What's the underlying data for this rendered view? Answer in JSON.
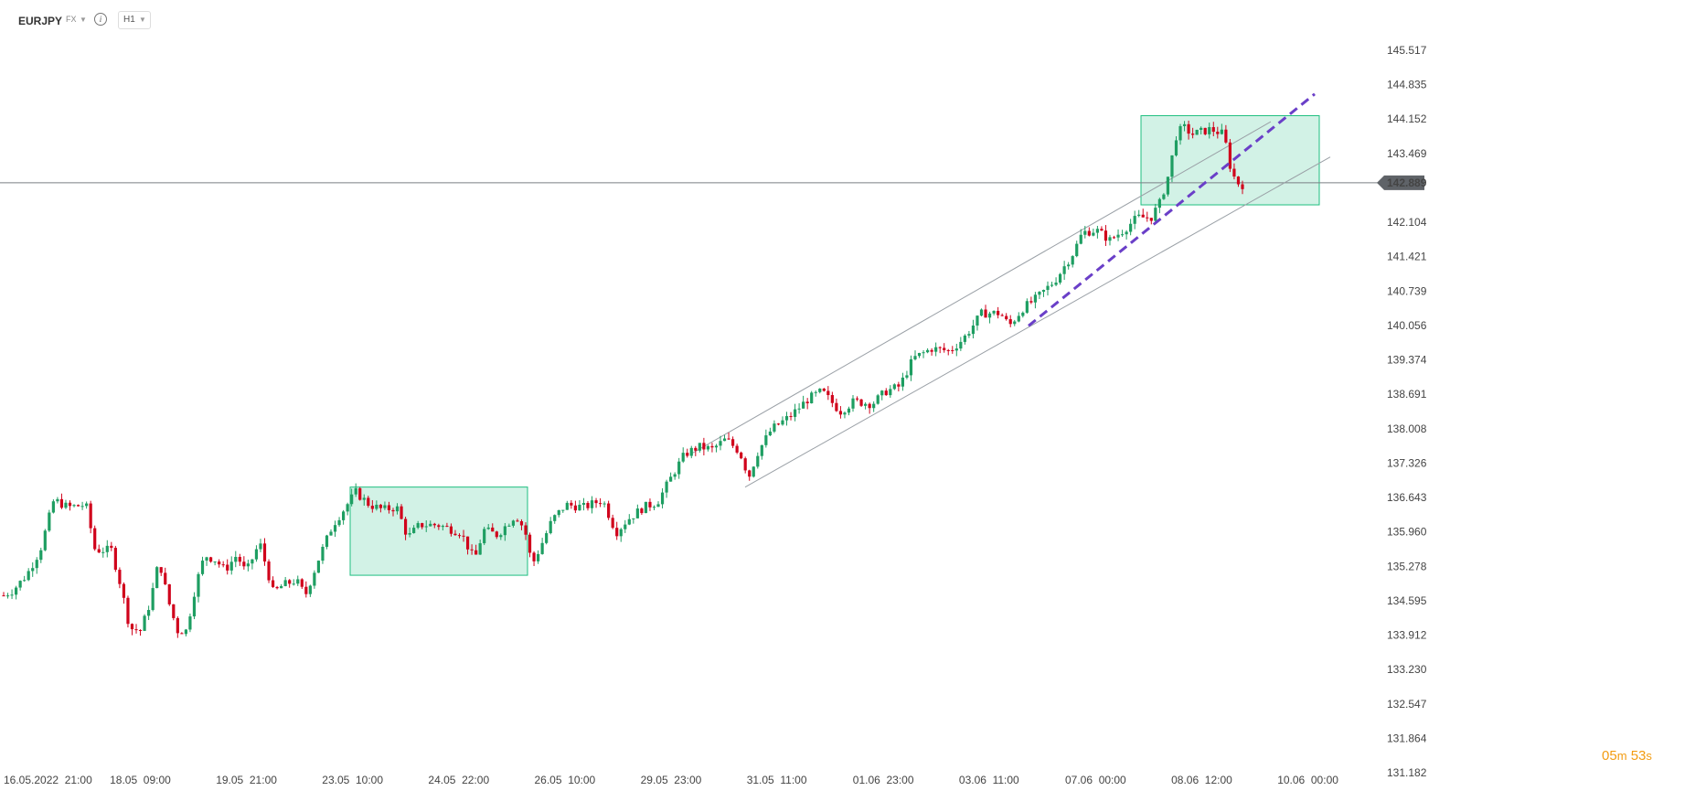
{
  "header": {
    "symbol": "EURJPY",
    "market": "FX",
    "timeframe": "H1",
    "info_icon": "info-icon",
    "dropdown_icon": "chevron-down-icon"
  },
  "countdown": {
    "minutes": "05",
    "m_unit": "m",
    "seconds": "53",
    "s_unit": "s"
  },
  "colors": {
    "up": "#1e9e62",
    "down": "#d0021b",
    "zone_fill": "#1fbf80",
    "trend_dashed": "#6a3fc8",
    "channel": "#9aa0a6",
    "price_tag": "#5f6368",
    "countdown": "#f39c12"
  },
  "chart_data": {
    "type": "candlestick",
    "timeframe": "H1",
    "current_price": 142.889,
    "current_price_label": "142.889",
    "y_ticks": [
      "145.517",
      "144.835",
      "144.152",
      "143.469",
      "142.889",
      "142.104",
      "141.421",
      "140.739",
      "140.056",
      "139.374",
      "138.691",
      "138.008",
      "137.326",
      "136.643",
      "135.960",
      "135.278",
      "134.595",
      "133.912",
      "133.230",
      "132.547",
      "131.864",
      "131.182"
    ],
    "x_ticks": [
      "16.05.2022  21:00",
      "18.05  09:00",
      "19.05  21:00",
      "23.05  10:00",
      "24.05  22:00",
      "26.05  10:00",
      "29.05  23:00",
      "31.05  11:00",
      "01.06  23:00",
      "03.06  11:00",
      "07.06  00:00",
      "08.06  12:00",
      "10.06  00:00"
    ],
    "n_candles": 300,
    "close_path": [
      [
        0,
        134.7
      ],
      [
        10,
        134.8
      ],
      [
        25,
        135.1
      ],
      [
        40,
        135.6
      ],
      [
        55,
        136.6
      ],
      [
        70,
        136.45
      ],
      [
        90,
        136.5
      ],
      [
        100,
        135.6
      ],
      [
        118,
        135.6
      ],
      [
        128,
        134.9
      ],
      [
        138,
        134.05
      ],
      [
        150,
        134.0
      ],
      [
        160,
        134.55
      ],
      [
        170,
        135.4
      ],
      [
        180,
        134.6
      ],
      [
        190,
        134.0
      ],
      [
        200,
        134.0
      ],
      [
        210,
        134.9
      ],
      [
        220,
        135.5
      ],
      [
        232,
        135.4
      ],
      [
        242,
        135.2
      ],
      [
        255,
        135.5
      ],
      [
        265,
        135.15
      ],
      [
        280,
        135.75
      ],
      [
        295,
        134.75
      ],
      [
        305,
        134.9
      ],
      [
        320,
        135.0
      ],
      [
        330,
        134.7
      ],
      [
        345,
        135.45
      ],
      [
        360,
        136.1
      ],
      [
        370,
        136.35
      ],
      [
        385,
        136.75
      ],
      [
        400,
        136.5
      ],
      [
        415,
        136.4
      ],
      [
        430,
        136.45
      ],
      [
        442,
        135.85
      ],
      [
        455,
        136.1
      ],
      [
        475,
        136.1
      ],
      [
        500,
        135.95
      ],
      [
        515,
        135.4
      ],
      [
        525,
        136.0
      ],
      [
        540,
        135.9
      ],
      [
        560,
        136.3
      ],
      [
        570,
        136.0
      ],
      [
        578,
        135.3
      ],
      [
        588,
        135.7
      ],
      [
        600,
        136.2
      ],
      [
        615,
        136.5
      ],
      [
        635,
        136.45
      ],
      [
        655,
        136.6
      ],
      [
        670,
        135.95
      ],
      [
        682,
        136.2
      ],
      [
        700,
        136.45
      ],
      [
        715,
        136.55
      ],
      [
        735,
        137.2
      ],
      [
        745,
        137.5
      ],
      [
        760,
        137.65
      ],
      [
        775,
        137.6
      ],
      [
        790,
        137.8
      ],
      [
        805,
        137.55
      ],
      [
        815,
        137.05
      ],
      [
        825,
        137.55
      ],
      [
        840,
        138.0
      ],
      [
        860,
        138.25
      ],
      [
        880,
        138.6
      ],
      [
        895,
        138.75
      ],
      [
        905,
        138.55
      ],
      [
        915,
        138.35
      ],
      [
        930,
        138.55
      ],
      [
        950,
        138.5
      ],
      [
        965,
        138.75
      ],
      [
        980,
        138.85
      ],
      [
        995,
        139.4
      ],
      [
        1015,
        139.6
      ],
      [
        1035,
        139.55
      ],
      [
        1050,
        139.8
      ],
      [
        1070,
        140.3
      ],
      [
        1090,
        140.3
      ],
      [
        1100,
        140.05
      ],
      [
        1115,
        140.4
      ],
      [
        1130,
        140.6
      ],
      [
        1150,
        140.95
      ],
      [
        1170,
        141.5
      ],
      [
        1180,
        141.9
      ],
      [
        1195,
        141.95
      ],
      [
        1210,
        141.75
      ],
      [
        1225,
        141.95
      ],
      [
        1240,
        142.2
      ],
      [
        1255,
        142.2
      ],
      [
        1265,
        142.5
      ],
      [
        1275,
        143.1
      ],
      [
        1282,
        143.8
      ],
      [
        1290,
        144.0
      ],
      [
        1300,
        143.85
      ],
      [
        1320,
        143.95
      ],
      [
        1335,
        143.85
      ],
      [
        1340,
        143.3
      ],
      [
        1348,
        142.9
      ],
      [
        1355,
        142.85
      ]
    ],
    "annotations": {
      "horizontal_line": 142.889,
      "channel_upper": [
        [
          755,
          137.5
        ],
        [
          1390,
          144.1
        ]
      ],
      "channel_lower": [
        [
          815,
          136.85
        ],
        [
          1455,
          143.4
        ]
      ],
      "trend_dashed": [
        [
          1125,
          140.05
        ],
        [
          1438,
          144.65
        ]
      ],
      "zones": [
        {
          "from_x": 383,
          "to_x": 577,
          "low": 135.1,
          "high": 136.85
        },
        {
          "from_x": 1248,
          "to_x": 1443,
          "low": 142.45,
          "high": 144.22
        }
      ]
    },
    "ylim": [
      131.182,
      145.517
    ],
    "grid": false,
    "legend": "none"
  }
}
